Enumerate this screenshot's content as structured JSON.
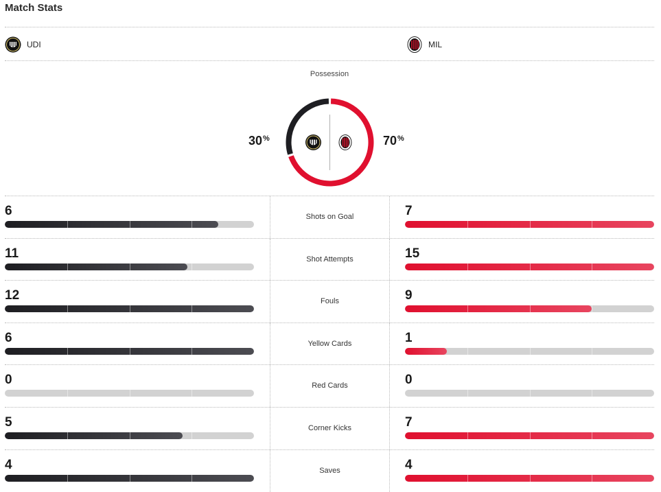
{
  "header": {
    "title": "Match Stats"
  },
  "home": {
    "abbr": "UDI",
    "possession_value": 30,
    "possession_label": "30",
    "color": "#1e1e22",
    "icon": "udinese-logo-icon"
  },
  "away": {
    "abbr": "MIL",
    "possession_value": 70,
    "possession_label": "70",
    "color": "#e0102f",
    "icon": "ac-milan-logo-icon"
  },
  "possession": {
    "label": "Possession",
    "percent_sign": "%"
  },
  "stats": [
    {
      "label": "Shots on Goal",
      "home": "6",
      "away": "7",
      "home_fill": 0.857,
      "away_fill": 1.0
    },
    {
      "label": "Shot Attempts",
      "home": "11",
      "away": "15",
      "home_fill": 0.733,
      "away_fill": 1.0
    },
    {
      "label": "Fouls",
      "home": "12",
      "away": "9",
      "home_fill": 1.0,
      "away_fill": 0.75
    },
    {
      "label": "Yellow Cards",
      "home": "6",
      "away": "1",
      "home_fill": 1.0,
      "away_fill": 0.167
    },
    {
      "label": "Red Cards",
      "home": "0",
      "away": "0",
      "home_fill": 0.0,
      "away_fill": 0.0
    },
    {
      "label": "Corner Kicks",
      "home": "5",
      "away": "7",
      "home_fill": 0.714,
      "away_fill": 1.0
    },
    {
      "label": "Saves",
      "home": "4",
      "away": "4",
      "home_fill": 1.0,
      "away_fill": 1.0
    }
  ]
}
